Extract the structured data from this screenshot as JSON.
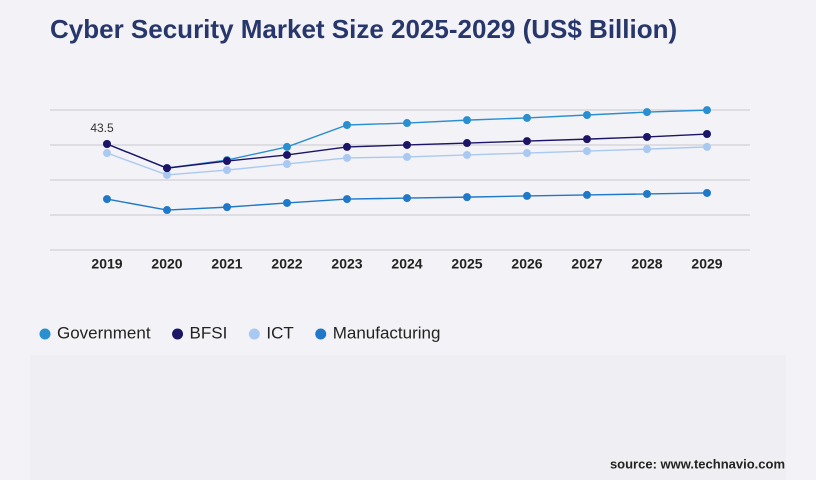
{
  "chart_data": {
    "type": "line",
    "title": "Cyber Security Market Size 2025-2029 (US$ Billion)",
    "source": "source: www.technavio.com",
    "categories": [
      "2019",
      "2020",
      "2021",
      "2022",
      "2023",
      "2024",
      "2025",
      "2026",
      "2027",
      "2028",
      "2029"
    ],
    "series": [
      {
        "name": "Government",
        "color": "#2a8fd0",
        "values": [
          43.5,
          33.6,
          36.9,
          42.3,
          51.3,
          52.1,
          53.3,
          54.2,
          55.4,
          56.6,
          57.4
        ]
      },
      {
        "name": "BFSI",
        "color": "#1c1466",
        "values": [
          43.5,
          33.6,
          36.5,
          39.0,
          42.3,
          43.1,
          43.9,
          44.7,
          45.5,
          46.4,
          47.6
        ],
        "show_first_label": true
      },
      {
        "name": "ICT",
        "color": "#a9c9f2",
        "values": [
          39.8,
          30.8,
          32.8,
          35.3,
          37.8,
          38.2,
          39.0,
          39.8,
          40.6,
          41.4,
          42.3
        ]
      },
      {
        "name": "Manufacturing",
        "color": "#1f78c8",
        "values": [
          20.9,
          16.4,
          17.6,
          19.3,
          20.9,
          21.3,
          21.7,
          22.2,
          22.6,
          23.0,
          23.4
        ]
      }
    ],
    "ylim": [
      0,
      60
    ],
    "grid": true
  }
}
